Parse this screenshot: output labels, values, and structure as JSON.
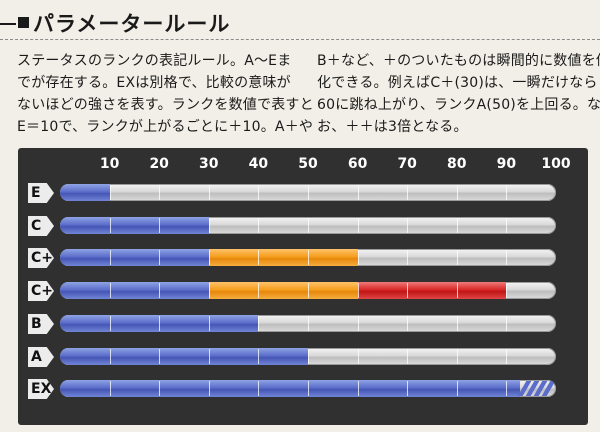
{
  "header": {
    "title": "パラメータールール"
  },
  "description": {
    "left_lines": [
      "ステータスのランクの表記ルール。A～Eま",
      "でが存在する。EXは別格で、比較の意味が",
      "ないほどの強さを表す。ランクを数値で表すと",
      "E＝10で、ランクが上がるごとに＋10。A＋や"
    ],
    "right_lines": [
      "B＋など、＋のついたものは瞬間的に数値を倍",
      "化できる。例えばC＋(30)は、一瞬だけなら",
      "60に跳ね上がり、ランクA(50)を上回る。な",
      "お、＋＋は3倍となる。"
    ]
  },
  "colors": {
    "panel": "#303030",
    "base": "#5668c6",
    "boost_x2": "#f39a16",
    "boost_x3": "#d42020",
    "track": "#d9d9d9"
  },
  "chart_data": {
    "type": "bar",
    "orientation": "horizontal",
    "xlim": [
      0,
      100
    ],
    "ticks": [
      "10",
      "20",
      "30",
      "40",
      "50",
      "60",
      "70",
      "80",
      "90",
      "100"
    ],
    "tick_values": [
      10,
      20,
      30,
      40,
      50,
      60,
      70,
      80,
      90,
      100
    ],
    "categories": [
      "E",
      "C",
      "C+",
      "C++",
      "B",
      "A",
      "EX"
    ],
    "rows": [
      {
        "label": "E",
        "segments": [
          {
            "from": 0,
            "to": 10,
            "color": "base"
          }
        ]
      },
      {
        "label": "C",
        "segments": [
          {
            "from": 0,
            "to": 30,
            "color": "base"
          }
        ]
      },
      {
        "label": "C+",
        "segments": [
          {
            "from": 0,
            "to": 30,
            "color": "base"
          },
          {
            "from": 30,
            "to": 60,
            "color": "boost_x2"
          }
        ]
      },
      {
        "label": "C++",
        "segments": [
          {
            "from": 0,
            "to": 30,
            "color": "base"
          },
          {
            "from": 30,
            "to": 60,
            "color": "boost_x2"
          },
          {
            "from": 60,
            "to": 90,
            "color": "boost_x3"
          }
        ]
      },
      {
        "label": "B",
        "segments": [
          {
            "from": 0,
            "to": 40,
            "color": "base"
          }
        ]
      },
      {
        "label": "A",
        "segments": [
          {
            "from": 0,
            "to": 50,
            "color": "base"
          }
        ]
      },
      {
        "label": "EX",
        "segments": [
          {
            "from": 0,
            "to": 100,
            "color": "base"
          }
        ],
        "beyond_scale": true
      }
    ]
  }
}
